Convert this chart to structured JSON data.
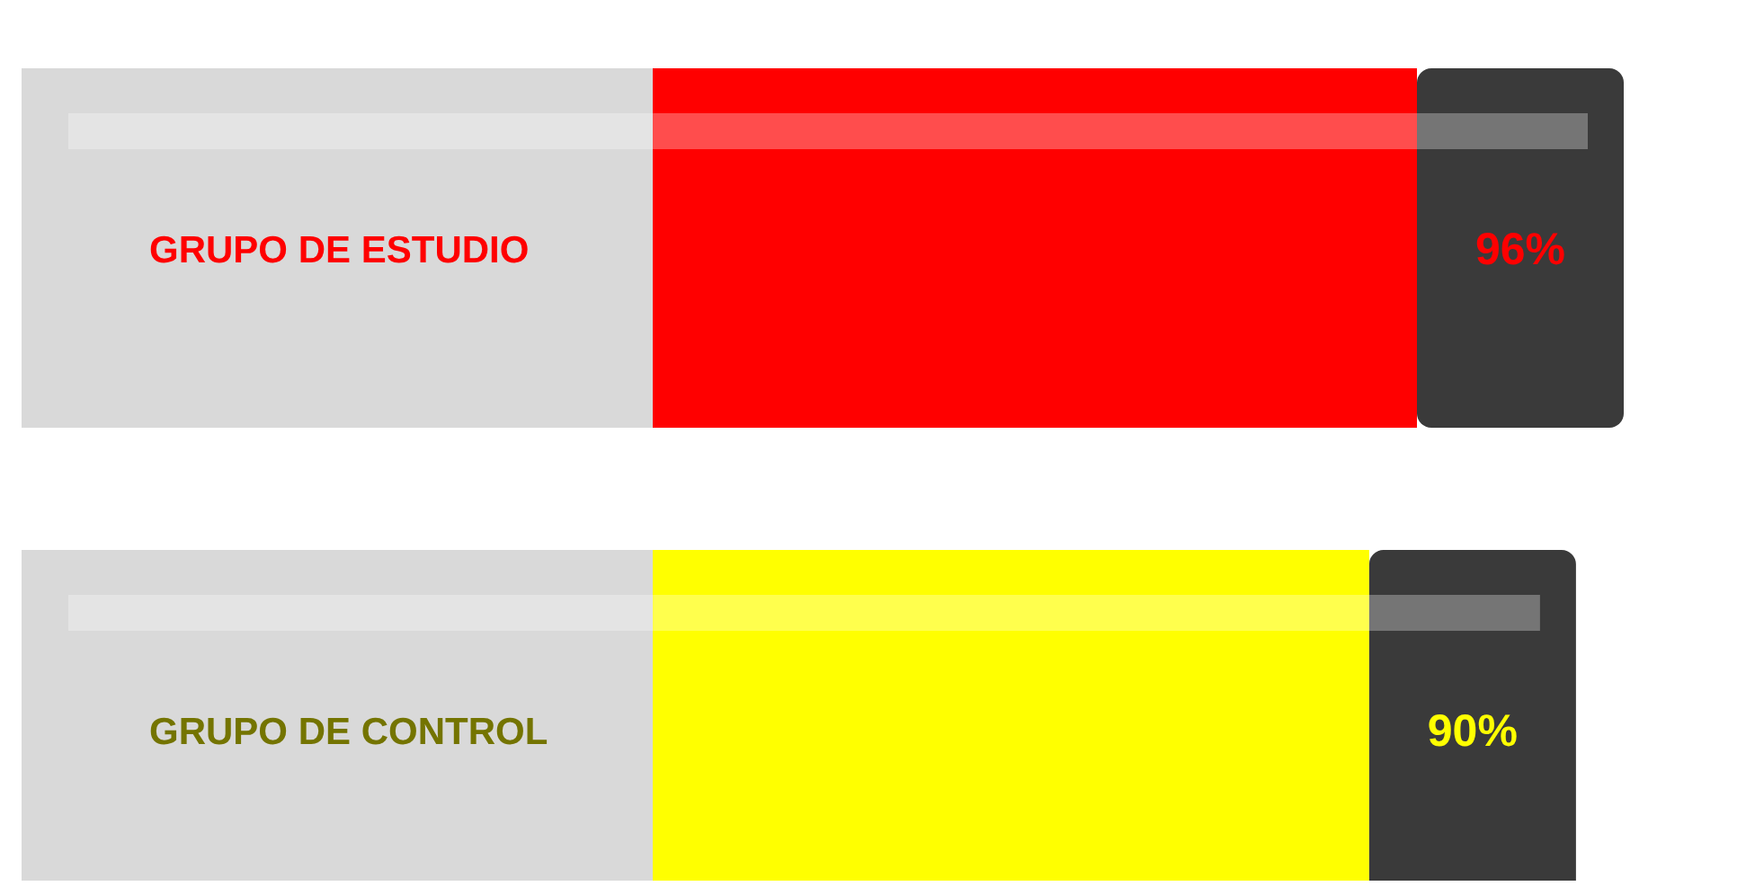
{
  "chart_data": {
    "type": "bar",
    "orientation": "horizontal",
    "categories": [
      "GRUPO DE ESTUDIO",
      "GRUPO DE CONTROL"
    ],
    "values": [
      96,
      90
    ],
    "colors": [
      "#ff0000",
      "#ffff00"
    ],
    "value_labels": [
      "96%",
      "90%"
    ]
  }
}
